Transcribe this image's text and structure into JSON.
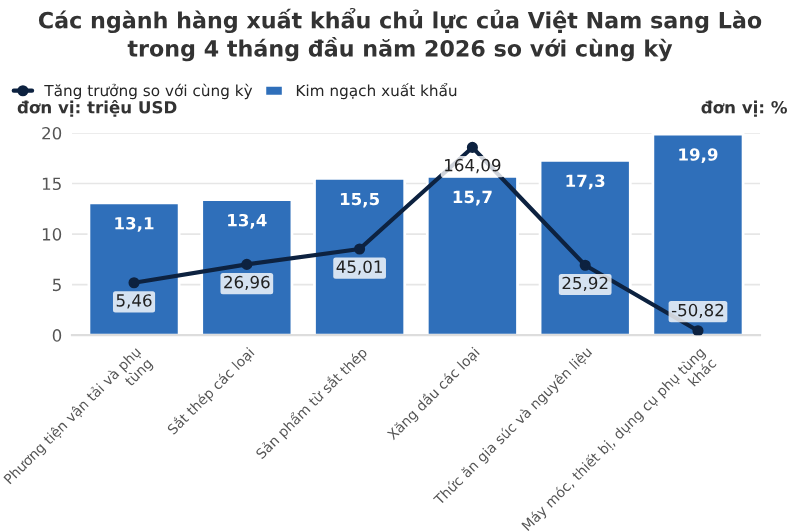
{
  "chart_data": {
    "type": "bar",
    "title": "Các ngành hàng xuất khẩu chủ lực của Việt Nam sang Lào trong 4 tháng đầu năm 2026 so với cùng kỳ",
    "ylabel": "đơn vị: triệu USD",
    "y2label": "đơn vị: %",
    "categories": [
      "Phương tiện vận tải và phụ tùng",
      "Sắt thép các loại",
      "Sản phẩm từ sắt thép",
      "Xăng dầu các loại",
      "Thức ăn gia súc và nguyên liệu",
      "Máy móc, thiết bị, dụng cụ phụ tùng khác"
    ],
    "series": [
      {
        "name": "Kim ngạch xuất khẩu",
        "color": "#2f6fba",
        "values": [
          13.1,
          13.4,
          15.5,
          15.7,
          17.3,
          19.9
        ],
        "value_labels": [
          "13,1",
          "13,4",
          "15,5",
          "15,7",
          "17,3",
          "19,9"
        ]
      },
      {
        "name": "Tăng trưởng so với cùng kỳ",
        "type": "line",
        "axis": "y2",
        "color": "#0d2240",
        "marker": "circle",
        "values": [
          5.46,
          26.96,
          45.01,
          164.09,
          25.92,
          -50.82
        ],
        "value_labels": [
          "5,46",
          "26,96",
          "45,01",
          "164,09",
          "25,92",
          "-50,82"
        ]
      }
    ],
    "ylim": [
      0,
      20
    ],
    "yticks": [
      0,
      5,
      10,
      15,
      20
    ],
    "y2lim": [
      -56,
      181
    ],
    "grid": "y",
    "legend": "top left"
  }
}
